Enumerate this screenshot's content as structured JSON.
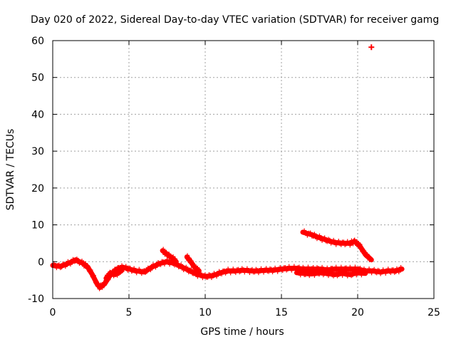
{
  "chart_data": {
    "type": "line",
    "title": "Day 020 of 2022, Sidereal Day-to-day VTEC variation (SDTVAR) for receiver gamg",
    "xlabel": "GPS time / hours",
    "ylabel": "SDTVAR / TECUs",
    "xlim": [
      0,
      25
    ],
    "ylim": [
      -10,
      60
    ],
    "xticks": [
      "0",
      "5",
      "10",
      "15",
      "20",
      "25"
    ],
    "xtick_values": [
      0,
      5,
      10,
      15,
      20,
      25
    ],
    "yticks": [
      "-10",
      "0",
      "10",
      "20",
      "30",
      "40",
      "50",
      "60"
    ],
    "ytick_values": [
      -10,
      0,
      10,
      20,
      30,
      40,
      50,
      60
    ],
    "grid": true,
    "color": "#ff0000",
    "series": [
      {
        "name": "main-trace",
        "x": [
          0,
          0.5,
          1.0,
          1.5,
          2.0,
          2.3,
          2.6,
          2.9,
          3.1,
          3.4,
          3.8,
          4.2,
          4.6,
          5.0,
          5.5,
          6.0,
          6.5,
          7.0,
          7.5,
          8.0,
          8.5,
          9.0,
          9.5,
          10.0,
          10.5,
          11.0,
          11.5,
          12.0,
          12.5,
          13.0,
          13.5,
          14.0,
          14.5,
          15.0,
          15.5,
          16.0,
          16.5,
          17.0,
          17.5,
          18.0,
          18.5,
          19.0,
          19.5,
          20.0,
          20.5,
          21.0,
          21.5,
          22.0,
          22.5,
          22.9
        ],
        "y": [
          -1.0,
          -1.3,
          -0.5,
          0.5,
          -0.5,
          -1.5,
          -3.5,
          -6.0,
          -7.0,
          -6.0,
          -3.5,
          -2.0,
          -1.5,
          -2.0,
          -2.5,
          -2.8,
          -1.5,
          -0.5,
          0.0,
          -0.5,
          -1.5,
          -2.5,
          -3.5,
          -4.0,
          -3.8,
          -3.0,
          -2.5,
          -2.5,
          -2.3,
          -2.5,
          -2.5,
          -2.3,
          -2.3,
          -2.0,
          -1.8,
          -1.8,
          -2.0,
          -2.0,
          -2.0,
          -2.2,
          -2.0,
          -2.0,
          -2.0,
          -2.0,
          -2.5,
          -2.5,
          -2.8,
          -2.5,
          -2.5,
          -2.0
        ]
      },
      {
        "name": "lower-band",
        "x": [
          16.0,
          16.5,
          17.0,
          17.5,
          18.0,
          18.5,
          19.0,
          19.5,
          20.0,
          20.5
        ],
        "y": [
          -3.0,
          -3.2,
          -3.3,
          -3.0,
          -3.2,
          -3.5,
          -3.2,
          -3.5,
          -3.0,
          -3.2
        ]
      },
      {
        "name": "rising-segment",
        "x": [
          16.4,
          17.0,
          17.5,
          18.0,
          18.5,
          19.0,
          19.5,
          19.8,
          20.1,
          20.5,
          20.9
        ],
        "y": [
          8.0,
          7.3,
          6.5,
          5.8,
          5.2,
          5.0,
          5.0,
          5.5,
          4.5,
          2.0,
          0.5
        ]
      },
      {
        "name": "hump-7h",
        "x": [
          7.2,
          7.5,
          7.9,
          8.1
        ],
        "y": [
          3.0,
          2.0,
          0.8,
          0.0
        ]
      },
      {
        "name": "hump-9h",
        "x": [
          8.8,
          9.0,
          9.3,
          9.6
        ],
        "y": [
          1.3,
          0.3,
          -1.5,
          -2.5
        ]
      },
      {
        "name": "lower-dip-4h",
        "x": [
          3.5,
          3.8,
          4.1,
          4.5
        ],
        "y": [
          -4.5,
          -3.0,
          -3.5,
          -2.5
        ]
      }
    ],
    "outlier": {
      "x": 20.9,
      "y": 58.2
    }
  }
}
